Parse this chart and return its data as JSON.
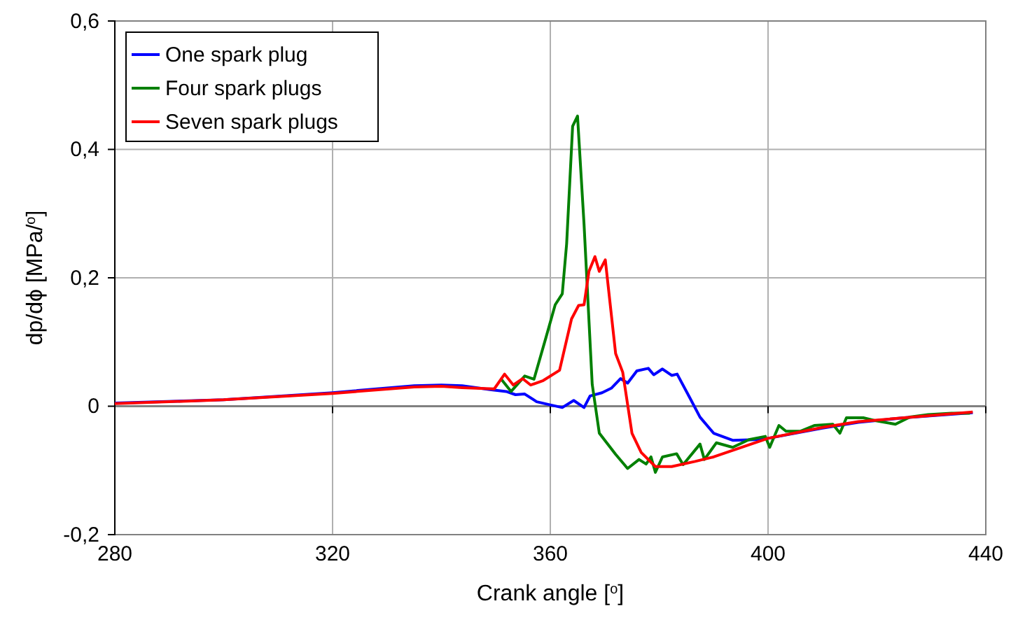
{
  "chart_data": {
    "type": "line",
    "xlabel": "Crank angle [$^{o}$]",
    "ylabel": "dp/dϕ [MPa/$^{o}$]",
    "xlim": [
      280,
      440
    ],
    "xticks": [
      280,
      320,
      360,
      400,
      440
    ],
    "ylim": [
      -0.2,
      0.6
    ],
    "yticks": [
      {
        "value": -0.2,
        "label": "-0,2"
      },
      0,
      {
        "value": 0.2,
        "label": "0,2"
      },
      {
        "value": 0.4,
        "label": "0,4"
      },
      {
        "value": 0.6,
        "label": "0,6"
      }
    ],
    "grid": true,
    "legend": "top left",
    "line_style": "solid",
    "marker": "none",
    "ref_lines": [
      {
        "axis": "y",
        "value": 0,
        "color": "#808080"
      }
    ],
    "series": [
      {
        "name": "One spark plug",
        "color": "#0000ff",
        "x": [
          280,
          300,
          320,
          335,
          340,
          343.8,
          348.9,
          351.9,
          353.6,
          355.3,
          357.5,
          360.0,
          362.2,
          364.3,
          366.2,
          367.3,
          369.5,
          371.2,
          372.9,
          374.2,
          375.9,
          378.0,
          379.0,
          380.6,
          382.3,
          383.3,
          385.7,
          387.5,
          390.0,
          393.5,
          397.7,
          400,
          410,
          416.6,
          425,
          437.6
        ],
        "values": [
          0.005,
          0.01,
          0.021,
          0.032,
          0.033,
          0.032,
          0.026,
          0.023,
          0.018,
          0.019,
          0.007,
          0.002,
          -0.002,
          0.009,
          -0.002,
          0.016,
          0.021,
          0.028,
          0.043,
          0.036,
          0.055,
          0.059,
          0.049,
          0.058,
          0.048,
          0.05,
          0.012,
          -0.017,
          -0.042,
          -0.053,
          -0.052,
          -0.05,
          -0.034,
          -0.025,
          -0.018,
          -0.01
        ]
      },
      {
        "name": "Four spark plugs",
        "color": "#008000",
        "x": [
          351.0,
          352.8,
          355.3,
          357.0,
          359.2,
          360.9,
          362.2,
          363.0,
          364.1,
          365.0,
          366.2,
          367.7,
          369.0,
          372.0,
          374.2,
          376.3,
          377.6,
          378.5,
          379.3,
          380.6,
          383.2,
          384.4,
          387.5,
          388.3,
          390.5,
          393.5,
          396.5,
          399.5,
          400.3,
          402.0,
          403.3,
          405.9,
          408.5,
          411.9,
          413.2,
          414.4,
          417.5,
          420.0,
          423.4,
          426.0,
          429.4,
          433.7,
          437.1
        ],
        "values": [
          0.042,
          0.023,
          0.047,
          0.042,
          0.107,
          0.158,
          0.175,
          0.253,
          0.436,
          0.452,
          0.283,
          0.034,
          -0.042,
          -0.075,
          -0.097,
          -0.083,
          -0.09,
          -0.079,
          -0.103,
          -0.079,
          -0.074,
          -0.091,
          -0.059,
          -0.083,
          -0.057,
          -0.064,
          -0.052,
          -0.047,
          -0.064,
          -0.03,
          -0.039,
          -0.039,
          -0.03,
          -0.028,
          -0.042,
          -0.018,
          -0.018,
          -0.023,
          -0.028,
          -0.017,
          -0.013,
          -0.011,
          -0.011
        ]
      },
      {
        "name": "Seven spark plugs",
        "color": "#ff0000",
        "x": [
          280,
          300,
          320,
          335,
          340,
          343.8,
          349.7,
          351.6,
          353.2,
          354.9,
          356.4,
          358.7,
          361.7,
          363.9,
          365.2,
          366.2,
          367.1,
          368.2,
          369.0,
          370.1,
          372.0,
          373.3,
          375.0,
          376.7,
          379.3,
          382.3,
          386.6,
          390.0,
          400,
          410,
          416.6,
          425,
          437.6
        ],
        "values": [
          0.004,
          0.01,
          0.02,
          0.03,
          0.031,
          0.029,
          0.027,
          0.05,
          0.033,
          0.043,
          0.033,
          0.04,
          0.056,
          0.136,
          0.157,
          0.158,
          0.21,
          0.233,
          0.21,
          0.228,
          0.082,
          0.053,
          -0.042,
          -0.072,
          -0.094,
          -0.094,
          -0.086,
          -0.079,
          -0.05,
          -0.033,
          -0.024,
          -0.018,
          -0.009
        ]
      }
    ]
  }
}
